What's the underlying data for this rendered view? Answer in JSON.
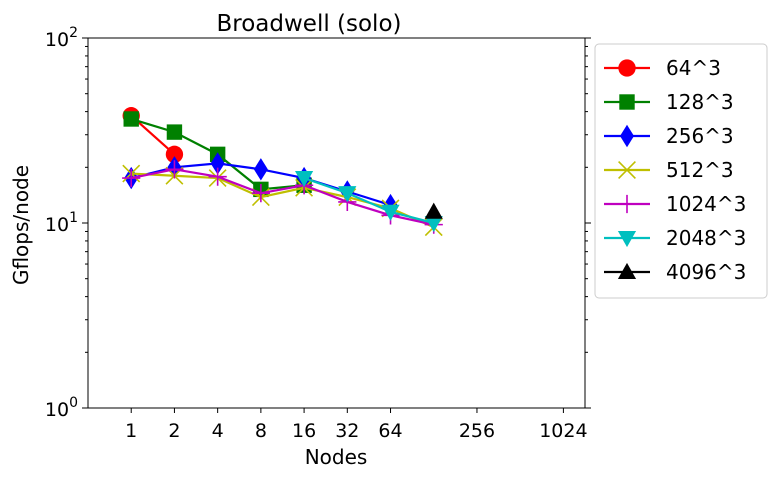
{
  "chart_data": {
    "type": "line",
    "title": "Broadwell (solo)",
    "xlabel": "Nodes",
    "ylabel": "Gflops/node",
    "x_scale": "log2",
    "y_scale": "log10",
    "xlim": [
      0.5,
      1448
    ],
    "ylim": [
      1,
      100
    ],
    "x_ticks": [
      1,
      2,
      4,
      8,
      16,
      32,
      64,
      256,
      1024
    ],
    "x_tick_labels": [
      "1",
      "2",
      "4",
      "8",
      "16",
      "32",
      "64",
      "256",
      "1024"
    ],
    "y_ticks": [
      1,
      10,
      100
    ],
    "y_tick_labels": [
      {
        "base": "10",
        "exp": "0"
      },
      {
        "base": "10",
        "exp": "1"
      },
      {
        "base": "10",
        "exp": "2"
      }
    ],
    "grid": false,
    "legend_position": "outside right",
    "series": [
      {
        "name": "64^3",
        "color": "#ff0000",
        "marker": "circle",
        "x": [
          1,
          2
        ],
        "y": [
          38,
          23.5
        ]
      },
      {
        "name": "128^3",
        "color": "#008000",
        "marker": "square",
        "x": [
          1,
          2,
          4,
          8,
          16
        ],
        "y": [
          36.5,
          31,
          23.5,
          15.2,
          16
        ]
      },
      {
        "name": "256^3",
        "color": "#0000ff",
        "marker": "diamond",
        "x": [
          1,
          2,
          4,
          8,
          16,
          32,
          64
        ],
        "y": [
          17.5,
          20,
          21,
          19.5,
          17.5,
          14.8,
          12.5
        ]
      },
      {
        "name": "512^3",
        "color": "#bfbf00",
        "marker": "x",
        "x": [
          1,
          2,
          4,
          8,
          16,
          32,
          64,
          128
        ],
        "y": [
          18.5,
          18,
          17.5,
          13.8,
          15.5,
          13.8,
          12,
          9.5
        ]
      },
      {
        "name": "1024^3",
        "color": "#bf00bf",
        "marker": "plus",
        "x": [
          1,
          2,
          4,
          8,
          16,
          32,
          64,
          128
        ],
        "y": [
          17.5,
          19.5,
          17.8,
          14.5,
          16,
          13,
          11,
          9.8
        ]
      },
      {
        "name": "2048^3",
        "color": "#00bfbf",
        "marker": "triangle-down",
        "x": [
          16,
          32,
          64,
          128
        ],
        "y": [
          17.5,
          14.5,
          11.5,
          10
        ]
      },
      {
        "name": "4096^3",
        "color": "#000000",
        "marker": "triangle-up",
        "x": [
          128
        ],
        "y": [
          11.5
        ]
      }
    ]
  }
}
